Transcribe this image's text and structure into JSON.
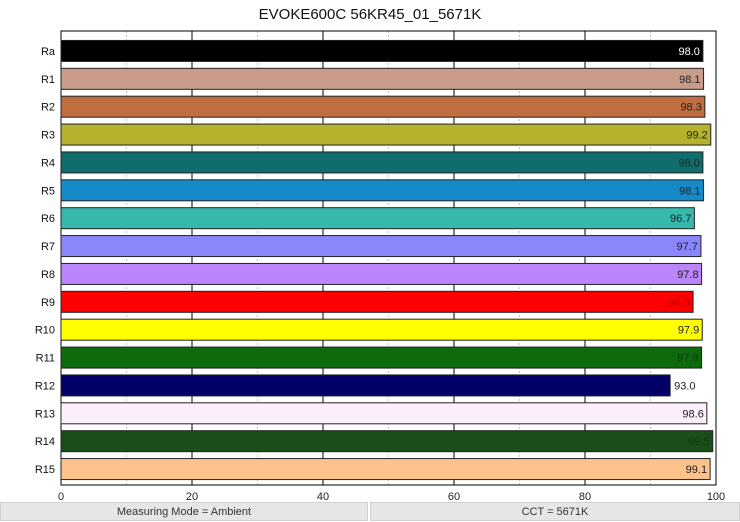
{
  "chart_data": {
    "type": "bar",
    "orientation": "horizontal",
    "title": "EVOKE600C 56KR45_01_5671K",
    "categories": [
      "Ra",
      "R1",
      "R2",
      "R3",
      "R4",
      "R5",
      "R6",
      "R7",
      "R8",
      "R9",
      "R10",
      "R11",
      "R12",
      "R13",
      "R14",
      "R15"
    ],
    "values": [
      98.0,
      98.1,
      98.3,
      99.2,
      98.0,
      98.1,
      96.7,
      97.7,
      97.8,
      96.5,
      97.9,
      97.8,
      93.0,
      98.6,
      99.5,
      99.1
    ],
    "labels": [
      "98.0",
      "98.1",
      "98.3",
      "99.2",
      "98.0",
      "98.1",
      "96.7",
      "97.7",
      "97.8",
      "96.5",
      "97.9",
      "97.8",
      "93.0",
      "98.6",
      "99.5",
      "99.1"
    ],
    "colors": [
      "#000000",
      "#c89c88",
      "#bf6e40",
      "#b5b22e",
      "#0f6e6c",
      "#1689c8",
      "#36b8ad",
      "#8a87fc",
      "#bb86fb",
      "#fe0000",
      "#ffff00",
      "#0d6b0d",
      "#000066",
      "#fdeefc",
      "#1a4f1a",
      "#fdc38c"
    ],
    "label_colors": [
      "#ffffff",
      "#222222",
      "#222222",
      "#222222",
      "#222222",
      "#222222",
      "#222222",
      "#222222",
      "#222222",
      "#b00000",
      "#222222",
      "#0a3a0a",
      "#222222",
      "#222222",
      "#0a3a0a",
      "#222222"
    ],
    "xlim": [
      0,
      100
    ],
    "xticks": [
      "0",
      "20",
      "40",
      "60",
      "80",
      "100"
    ],
    "xlabel": "",
    "ylabel": "",
    "grid": true
  },
  "footer": {
    "mode": "Measuring Mode = Ambient",
    "cct": "CCT = 5671K"
  }
}
